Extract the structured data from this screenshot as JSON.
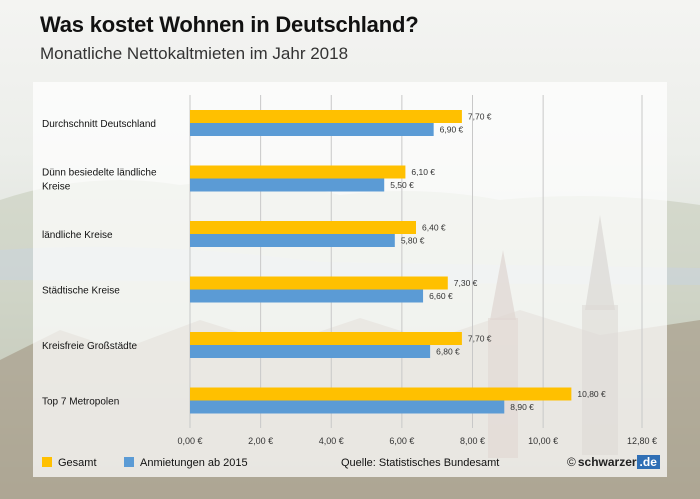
{
  "title": "Was kostet Wohnen in Deutschland?",
  "subtitle": "Monatliche Nettokaltmieten im Jahr 2018",
  "colors": {
    "gesamt": "#ffc000",
    "anmietungen": "#5b9bd5"
  },
  "legend": {
    "gesamt": "Gesamt",
    "anmietungen": "Anmietungen ab 2015"
  },
  "source": "Quelle: Statistisches Bundesamt",
  "brand": {
    "copyright": "©",
    "name": "schwarzer",
    "tld": ".de"
  },
  "chart_data": {
    "type": "bar",
    "orientation": "horizontal",
    "title": "Was kostet Wohnen in Deutschland?",
    "subtitle": "Monatliche Nettokaltmieten im Jahr 2018",
    "categories": [
      "Durchschnitt Deutschland",
      "Dünn besiedelte ländliche Kreise",
      "ländliche Kreise",
      "Städtische Kreise",
      "Kreisfreie Großstädte",
      "Top 7 Metropolen"
    ],
    "category_lines": [
      [
        "Durchschnitt Deutschland"
      ],
      [
        "Dünn besiedelte ländliche",
        "Kreise"
      ],
      [
        "ländliche Kreise"
      ],
      [
        "Städtische Kreise"
      ],
      [
        "Kreisfreie Großstädte"
      ],
      [
        "Top 7 Metropolen"
      ]
    ],
    "series": [
      {
        "name": "Gesamt",
        "values": [
          7.7,
          6.1,
          6.4,
          7.3,
          7.7,
          10.8
        ],
        "labels": [
          "7,70 €",
          "6,10 €",
          "6,40 €",
          "7,30 €",
          "7,70 €",
          "10,80 €"
        ]
      },
      {
        "name": "Anmietungen ab 2015",
        "values": [
          6.9,
          5.5,
          5.8,
          6.6,
          6.8,
          8.9
        ],
        "labels": [
          "6,90 €",
          "5,50 €",
          "5,80 €",
          "6,60 €",
          "6,80 €",
          "8,90 €"
        ]
      }
    ],
    "xlim": [
      0,
      12.8
    ],
    "xticks": [
      0,
      2,
      4,
      6,
      8,
      10,
      12.8
    ],
    "xtick_labels": [
      "0,00 €",
      "2,00 €",
      "4,00 €",
      "6,00 €",
      "8,00 €",
      "10,00 €",
      "12,80 €"
    ],
    "grid": true,
    "legend_position": "bottom-left"
  }
}
